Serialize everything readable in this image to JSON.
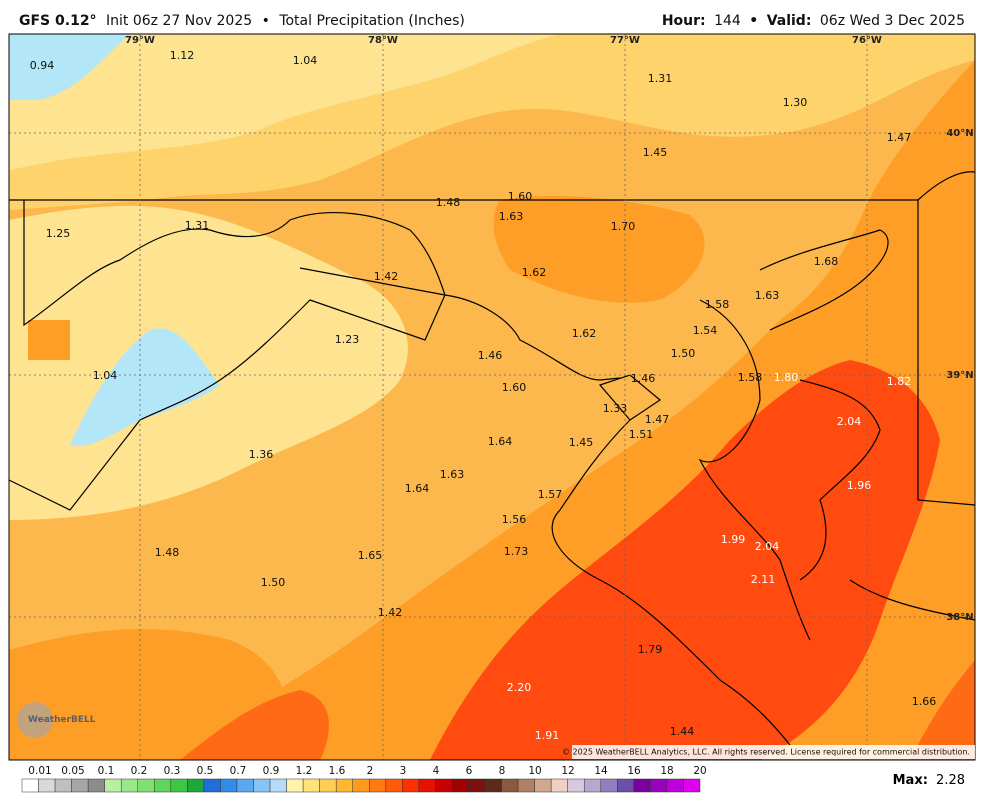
{
  "header": {
    "model": "GFS 0.12°",
    "init": "Init 06z 27 Nov 2025",
    "separator": "•",
    "product": "Total Precipitation (Inches)",
    "hour_label": "Hour:",
    "hour": "144",
    "valid_label": "Valid:",
    "valid": "06z Wed 3 Dec 2025"
  },
  "map": {
    "longitude_labels": [
      "79°W",
      "78°W",
      "77°W",
      "76°W"
    ],
    "latitude_labels": [
      "40°N",
      "39°N",
      "38°N"
    ],
    "point_labels": [
      "0.94",
      "1.12",
      "1.04",
      "1.31",
      "1.30",
      "1.47",
      "1.45",
      "1.60",
      "1.48",
      "1.63",
      "1.70",
      "1.25",
      "1.31",
      "1.42",
      "1.62",
      "1.68",
      "1.58",
      "1.63",
      "1.54",
      "1.62",
      "1.23",
      "1.46",
      "1.50",
      "1.04",
      "1.46",
      "1.58",
      "1.80",
      "1.82",
      "1.60",
      "1.33",
      "1.47",
      "2.04",
      "1.51",
      "1.64",
      "1.45",
      "1.36",
      "1.63",
      "1.64",
      "1.96",
      "1.57",
      "1.56",
      "1.99",
      "2.04",
      "1.48",
      "1.73",
      "1.65",
      "1.50",
      "2.11",
      "1.42",
      "1.79",
      "2.20",
      "1.66",
      "1.44",
      "1.91"
    ],
    "watermark": "WeatherBELL",
    "copyright": "© 2025 WeatherBELL Analytics, LLC. All rights reserved. License required for commercial distribution."
  },
  "colorbar": {
    "labels": [
      "0.01",
      "0.05",
      "0.1",
      "0.2",
      "0.3",
      "0.5",
      "0.7",
      "0.9",
      "1.2",
      "1.6",
      "2",
      "3",
      "4",
      "6",
      "8",
      "10",
      "12",
      "14",
      "16",
      "18",
      "20"
    ],
    "colors": [
      "#ffffff",
      "#d9d9d9",
      "#bfbfbf",
      "#a6a6a6",
      "#8c8c8c",
      "#b6f0a0",
      "#9ae88a",
      "#7fe070",
      "#5dd65a",
      "#3cc845",
      "#1fa83a",
      "#1e6fd9",
      "#2f8ce8",
      "#5aa8f0",
      "#86c4f5",
      "#b4dcf8",
      "#fff3a8",
      "#ffe27a",
      "#ffcf55",
      "#ffb833",
      "#ff9a1a",
      "#ff7a10",
      "#ff5a08",
      "#ff3000",
      "#e81000",
      "#c80000",
      "#a00000",
      "#7a1010",
      "#5a2a1a",
      "#8a5a40",
      "#b08060",
      "#d0a890",
      "#f0d0c0",
      "#d8c8e0",
      "#b8a8d0",
      "#9080c0",
      "#6a50a8",
      "#7a00a0",
      "#9a00c0",
      "#c000d8",
      "#e000f0"
    ]
  },
  "max": {
    "label": "Max:",
    "value": "2.28"
  }
}
